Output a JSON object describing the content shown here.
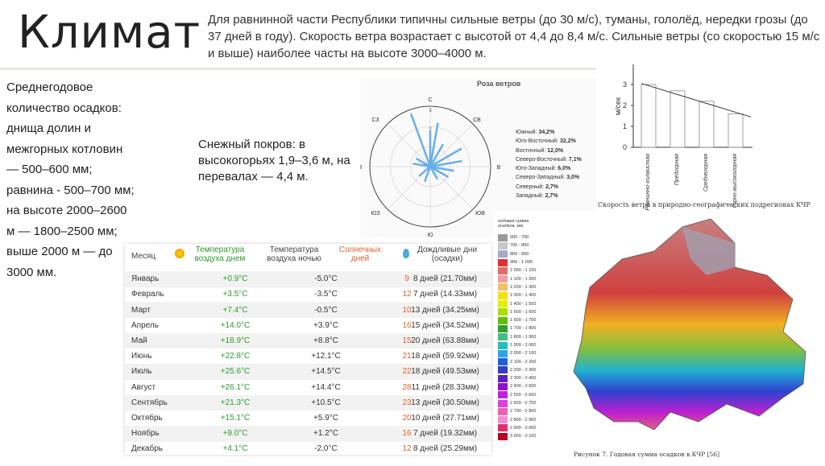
{
  "title": "Климат",
  "intro": "Для равнинной части Республики типичны сильные ветры (до 30 м/с), туманы, гололёд, нередки грозы (до 37 дней в году). Скорость ветра возрастает с высотой от 4,4 до 8,4 м/с. Сильные ветры (со скоростью 15 м/с и выше) наиболее часты на высоте 3000–4000 м.",
  "precip_text": "Среднегодовое количество осадков: днища долин и межгорных котловин — 500–600 мм; равнина - 500–700 мм; на высоте 2000–2600 м — 1800–2500 мм; выше 2000 м — до 3000 мм.",
  "snow_text": "Снежный покров: в высокогорьях 1,9–3,6 м, на перевалах — 4,4 м.",
  "rose": {
    "title": "Роза ветров",
    "directions": [
      "С",
      "СВ",
      "В",
      "ЮВ",
      "Ю",
      "ЮЗ",
      "З",
      "СЗ"
    ],
    "rings": [
      "1",
      "2",
      "3"
    ],
    "legend": [
      {
        "label": "Южный:",
        "value": "34,2%"
      },
      {
        "label": "Юго-Восточный:",
        "value": "32,2%"
      },
      {
        "label": "Восточный:",
        "value": "12,0%"
      },
      {
        "label": "Северо-Восточный:",
        "value": "7,1%"
      },
      {
        "label": "Юго-Западный:",
        "value": "6,0%"
      },
      {
        "label": "Северо-Западный:",
        "value": "3,0%"
      },
      {
        "label": "Северный:",
        "value": "2,7%"
      },
      {
        "label": "Западный:",
        "value": "2,7%"
      }
    ]
  },
  "wind_chart": {
    "ylabel": "м/сек",
    "yticks": [
      "0",
      "1",
      "2",
      "3"
    ],
    "categories": [
      "Равнинно-холмистая",
      "Предгорная",
      "Среднегорная",
      "Горно-высокогорная"
    ],
    "caption": "Скорость ветра в природно-географических подрегионах КЧР"
  },
  "table": {
    "headers": [
      "Месяц",
      "Температура воздуха днем",
      "Температура воздуха ночью",
      "Солнечных дней",
      "Дождливые дни (осадки)"
    ],
    "rows": [
      [
        "Январь",
        "+0.9°C",
        "-5.0°C",
        "9",
        "8 дней (21.70мм)"
      ],
      [
        "Февраль",
        "+3.5°C",
        "-3.5°C",
        "12",
        "7 дней (14.33мм)"
      ],
      [
        "Март",
        "+7.4°C",
        "-0.5°C",
        "10",
        "13 дней (34.25мм)"
      ],
      [
        "Апрель",
        "+14.0°C",
        "+3.9°C",
        "16",
        "15 дней (34.52мм)"
      ],
      [
        "Май",
        "+18.9°C",
        "+8.8°C",
        "15",
        "20 дней (63.88мм)"
      ],
      [
        "Июнь",
        "+22.8°C",
        "+12.1°C",
        "21",
        "18 дней (59.92мм)"
      ],
      [
        "Июль",
        "+25.6°C",
        "+14.5°C",
        "22",
        "18 дней (49.53мм)"
      ],
      [
        "Август",
        "+26.1°C",
        "+14.4°C",
        "28",
        "11 дней (28.33мм)"
      ],
      [
        "Сентябрь",
        "+21.3°C",
        "+10.5°C",
        "23",
        "13 дней (30.50мм)"
      ],
      [
        "Октябрь",
        "+15.1°C",
        "+5.9°C",
        "20",
        "10 дней (27.71мм)"
      ],
      [
        "Ноябрь",
        "+9.0°C",
        "+1.2°C",
        "16",
        "7 дней (19.32мм)"
      ],
      [
        "Декабрь",
        "+4.1°C",
        "-2.0°C",
        "12",
        "8 дней (25.29мм)"
      ]
    ]
  },
  "map": {
    "legend_title": "годовая сумма осадков, мм",
    "legend": [
      "600 - 700",
      "700 - 800",
      "800 - 900",
      "900 - 1 000",
      "1 000 - 1 100",
      "1 100 - 1 200",
      "1 200 - 1 300",
      "1 300 - 1 400",
      "1 400 - 1 500",
      "1 500 - 1 600",
      "1 600 - 1 700",
      "1 700 - 1 800",
      "1 800 - 1 900",
      "1 900 - 2 000",
      "2 000 - 2 100",
      "2 100 - 2 200",
      "2 200 - 2 300",
      "2 300 - 2 400",
      "2 400 - 2 500",
      "2 500 - 2 600",
      "2 600 - 2 700",
      "2 700 - 2 800",
      "2 800 - 2 900",
      "2 900 - 3 000",
      "3 000 - 3 100"
    ],
    "legend_colors": [
      "#9a9a9a",
      "#c8c8c8",
      "#a8a8c8",
      "#e03030",
      "#e86a6a",
      "#f0a0a0",
      "#f5c060",
      "#f5e000",
      "#e0f000",
      "#a8e000",
      "#60c000",
      "#30a030",
      "#40c080",
      "#20c0c0",
      "#30a0f0",
      "#2060e0",
      "#3040c0",
      "#6020c0",
      "#9010d0",
      "#c020e0",
      "#e040e0",
      "#f060b0",
      "#f090d0",
      "#e0306a",
      "#c00020"
    ],
    "caption": "Рисунок 7.  Годовая сумма осадков в КЧР [56]"
  }
}
